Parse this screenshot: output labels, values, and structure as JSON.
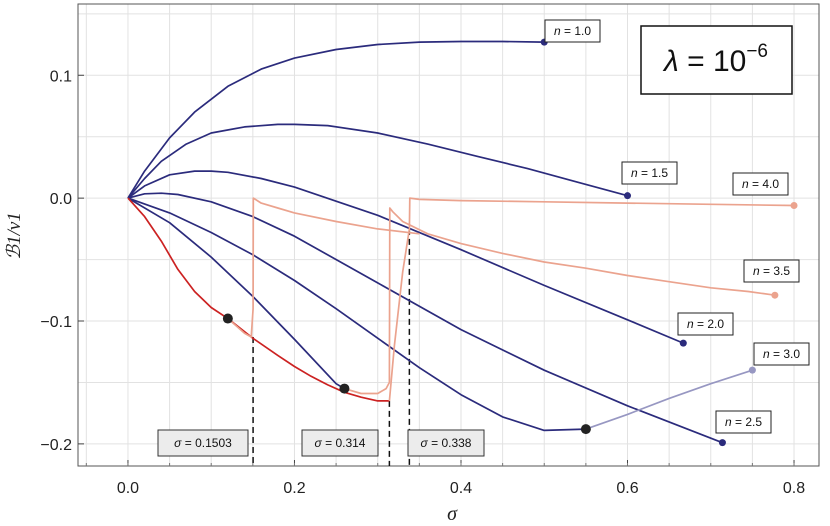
{
  "chart_data": {
    "type": "line",
    "title": "",
    "xlabel": "σ",
    "ylabel": "ℬ1/v1",
    "xlim": [
      -0.06,
      0.83
    ],
    "ylim": [
      -0.218,
      0.158
    ],
    "grid": true,
    "x_ticks": [
      0.0,
      0.2,
      0.4,
      0.6,
      0.8
    ],
    "x_tick_labels": [
      "0.0",
      "0.2",
      "0.4",
      "0.6",
      "0.8"
    ],
    "y_ticks": [
      0.1,
      0.0,
      -0.1,
      -0.2
    ],
    "y_tick_labels": [
      "0.1",
      "0.0",
      "−0.1",
      "−0.2"
    ],
    "annotation": {
      "symbol": "λ",
      "equals": " = 10",
      "exponent": "−6"
    },
    "colors": {
      "dark": "#2b2b7c",
      "red": "#cc2222",
      "salmon": "#eba38e",
      "lavender": "#9797c2",
      "marker": "#222222"
    },
    "series": [
      {
        "name": "n = 1.0",
        "label_prefix": "n",
        "label_value": " = 1.0",
        "color": "dark",
        "x": [
          0,
          0.02,
          0.05,
          0.08,
          0.12,
          0.16,
          0.2,
          0.25,
          0.3,
          0.35,
          0.4,
          0.45,
          0.5
        ],
        "y": [
          0,
          0.022,
          0.049,
          0.07,
          0.091,
          0.105,
          0.114,
          0.121,
          0.125,
          0.127,
          0.1275,
          0.1275,
          0.127
        ],
        "end_marker": true
      },
      {
        "name": "n = 1.5",
        "label_prefix": "n",
        "label_value": " = 1.5",
        "color": "dark",
        "x": [
          0,
          0.02,
          0.04,
          0.07,
          0.1,
          0.14,
          0.18,
          0.2,
          0.24,
          0.3,
          0.36,
          0.42,
          0.48,
          0.54,
          0.6
        ],
        "y": [
          0,
          0.016,
          0.03,
          0.044,
          0.053,
          0.058,
          0.06,
          0.06,
          0.059,
          0.053,
          0.044,
          0.034,
          0.024,
          0.013,
          0.002
        ],
        "end_marker": true
      },
      {
        "name": "n = 2.0",
        "label_prefix": "n",
        "label_value": " = 2.0",
        "color": "dark",
        "x": [
          0,
          0.02,
          0.05,
          0.08,
          0.1,
          0.12,
          0.16,
          0.2,
          0.3,
          0.4,
          0.5,
          0.6,
          0.667
        ],
        "y": [
          0,
          0.01,
          0.019,
          0.022,
          0.022,
          0.021,
          0.016,
          0.009,
          -0.014,
          -0.042,
          -0.071,
          -0.099,
          -0.118
        ],
        "end_marker": true
      },
      {
        "name": "n = 2.5",
        "label_prefix": "n",
        "label_value": " = 2.5",
        "color": "dark",
        "x": [
          0,
          0.02,
          0.04,
          0.06,
          0.1,
          0.15,
          0.2,
          0.3,
          0.4,
          0.5,
          0.6,
          0.714
        ],
        "y": [
          0,
          0.0035,
          0.004,
          0.003,
          -0.003,
          -0.015,
          -0.031,
          -0.069,
          -0.107,
          -0.14,
          -0.169,
          -0.199
        ],
        "end_marker": true
      },
      {
        "name": "n = 3.0",
        "label_prefix": "n",
        "label_value": " = 3.0",
        "segments": [
          {
            "color": "dark",
            "x": [
              0,
              0.05,
              0.1,
              0.15,
              0.2,
              0.25,
              0.3,
              0.35,
              0.4,
              0.45,
              0.5,
              0.55
            ],
            "y": [
              0,
              -0.012,
              -0.028,
              -0.046,
              -0.067,
              -0.09,
              -0.114,
              -0.138,
              -0.16,
              -0.178,
              -0.189,
              -0.188
            ]
          },
          {
            "color": "lavender",
            "x": [
              0.55,
              0.6,
              0.65,
              0.7,
              0.75
            ],
            "y": [
              -0.188,
              -0.176,
              -0.163,
              -0.151,
              -0.14
            ]
          }
        ],
        "mid_marker": [
          0.55,
          -0.188
        ],
        "end_marker": true
      },
      {
        "name": "n = 3.5",
        "label_prefix": "n",
        "label_value": " = 3.5",
        "segments": [
          {
            "color": "dark",
            "x": [
              0,
              0.05,
              0.1,
              0.15,
              0.2,
              0.25,
              0.26
            ],
            "y": [
              0,
              -0.02,
              -0.048,
              -0.08,
              -0.115,
              -0.151,
              -0.155
            ]
          },
          {
            "color": "salmon",
            "x": [
              0.26,
              0.28,
              0.3,
              0.31,
              0.314,
              0.3145,
              0.318,
              0.33,
              0.36,
              0.4,
              0.45,
              0.5,
              0.55,
              0.6,
              0.65,
              0.7,
              0.745,
              0.777
            ],
            "y": [
              -0.155,
              -0.159,
              -0.159,
              -0.155,
              -0.15,
              -0.008,
              -0.011,
              -0.019,
              -0.029,
              -0.037,
              -0.045,
              -0.052,
              -0.057,
              -0.063,
              -0.068,
              -0.073,
              -0.076,
              -0.079
            ]
          }
        ],
        "mid_marker": [
          0.26,
          -0.155
        ],
        "end_marker": true
      },
      {
        "name": "n = 4.0",
        "label_prefix": "n",
        "label_value": " = 4.0",
        "segments": [
          {
            "color": "red",
            "x": [
              0,
              0.02,
              0.04,
              0.06,
              0.08,
              0.1,
              0.12
            ],
            "y": [
              0,
              -0.015,
              -0.035,
              -0.058,
              -0.076,
              -0.089,
              -0.098
            ]
          },
          {
            "color": "red",
            "x": [
              0.12,
              0.15,
              0.18,
              0.2,
              0.22,
              0.24,
              0.26,
              0.28,
              0.3,
              0.314
            ],
            "y": [
              -0.098,
              -0.114,
              -0.128,
              -0.137,
              -0.145,
              -0.152,
              -0.158,
              -0.162,
              -0.165,
              -0.165
            ]
          },
          {
            "color": "salmon",
            "x": [
              0.314,
              0.32,
              0.33,
              0.338,
              0.3385,
              0.35,
              0.4,
              0.5,
              0.6,
              0.7,
              0.8
            ],
            "y": [
              -0.165,
              -0.12,
              -0.06,
              -0.025,
              0.0,
              -0.001,
              -0.002,
              -0.003,
              -0.004,
              -0.005,
              -0.006
            ]
          }
        ],
        "mid_marker": [
          0.12,
          -0.098
        ],
        "end_marker": true
      },
      {
        "name": "",
        "color": "salmon",
        "x": [
          0.12,
          0.13,
          0.14,
          0.148,
          0.1503,
          0.1506,
          0.16,
          0.18,
          0.2,
          0.25,
          0.3,
          0.35
        ],
        "y": [
          -0.098,
          -0.104,
          -0.11,
          -0.113,
          -0.09,
          0.0,
          -0.004,
          -0.008,
          -0.012,
          -0.019,
          -0.025,
          -0.029
        ],
        "end_marker": false
      }
    ],
    "vertical_lines": [
      {
        "x": 0.1503,
        "y_top": -0.113,
        "label_prefix": "σ",
        "label_value": " = 0.1503"
      },
      {
        "x": 0.314,
        "y_top": -0.165,
        "label_prefix": "σ",
        "label_value": " = 0.314"
      },
      {
        "x": 0.338,
        "y_top": -0.025,
        "label_prefix": "σ",
        "label_value": " = 0.338"
      }
    ]
  }
}
